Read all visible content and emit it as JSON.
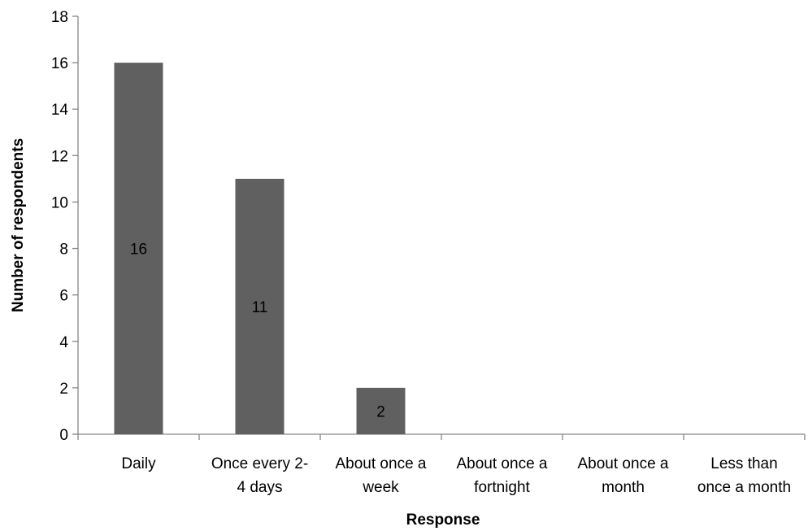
{
  "chart_data": {
    "type": "bar",
    "categories": [
      [
        "Daily"
      ],
      [
        "Once every 2-",
        "4 days"
      ],
      [
        "About once a",
        "week"
      ],
      [
        "About once a",
        "fortnight"
      ],
      [
        "About once a",
        "month"
      ],
      [
        "Less than",
        "once a month"
      ]
    ],
    "values": [
      16,
      11,
      2,
      0,
      0,
      0
    ],
    "data_labels": [
      "16",
      "11",
      "2",
      "",
      "",
      ""
    ],
    "xlabel": "Response",
    "ylabel": "Number of respondents",
    "ylim": [
      0,
      18
    ],
    "yticks": [
      0,
      2,
      4,
      6,
      8,
      10,
      12,
      14,
      16,
      18
    ],
    "grid": false,
    "legend": "none",
    "bar_color": "#606060"
  }
}
